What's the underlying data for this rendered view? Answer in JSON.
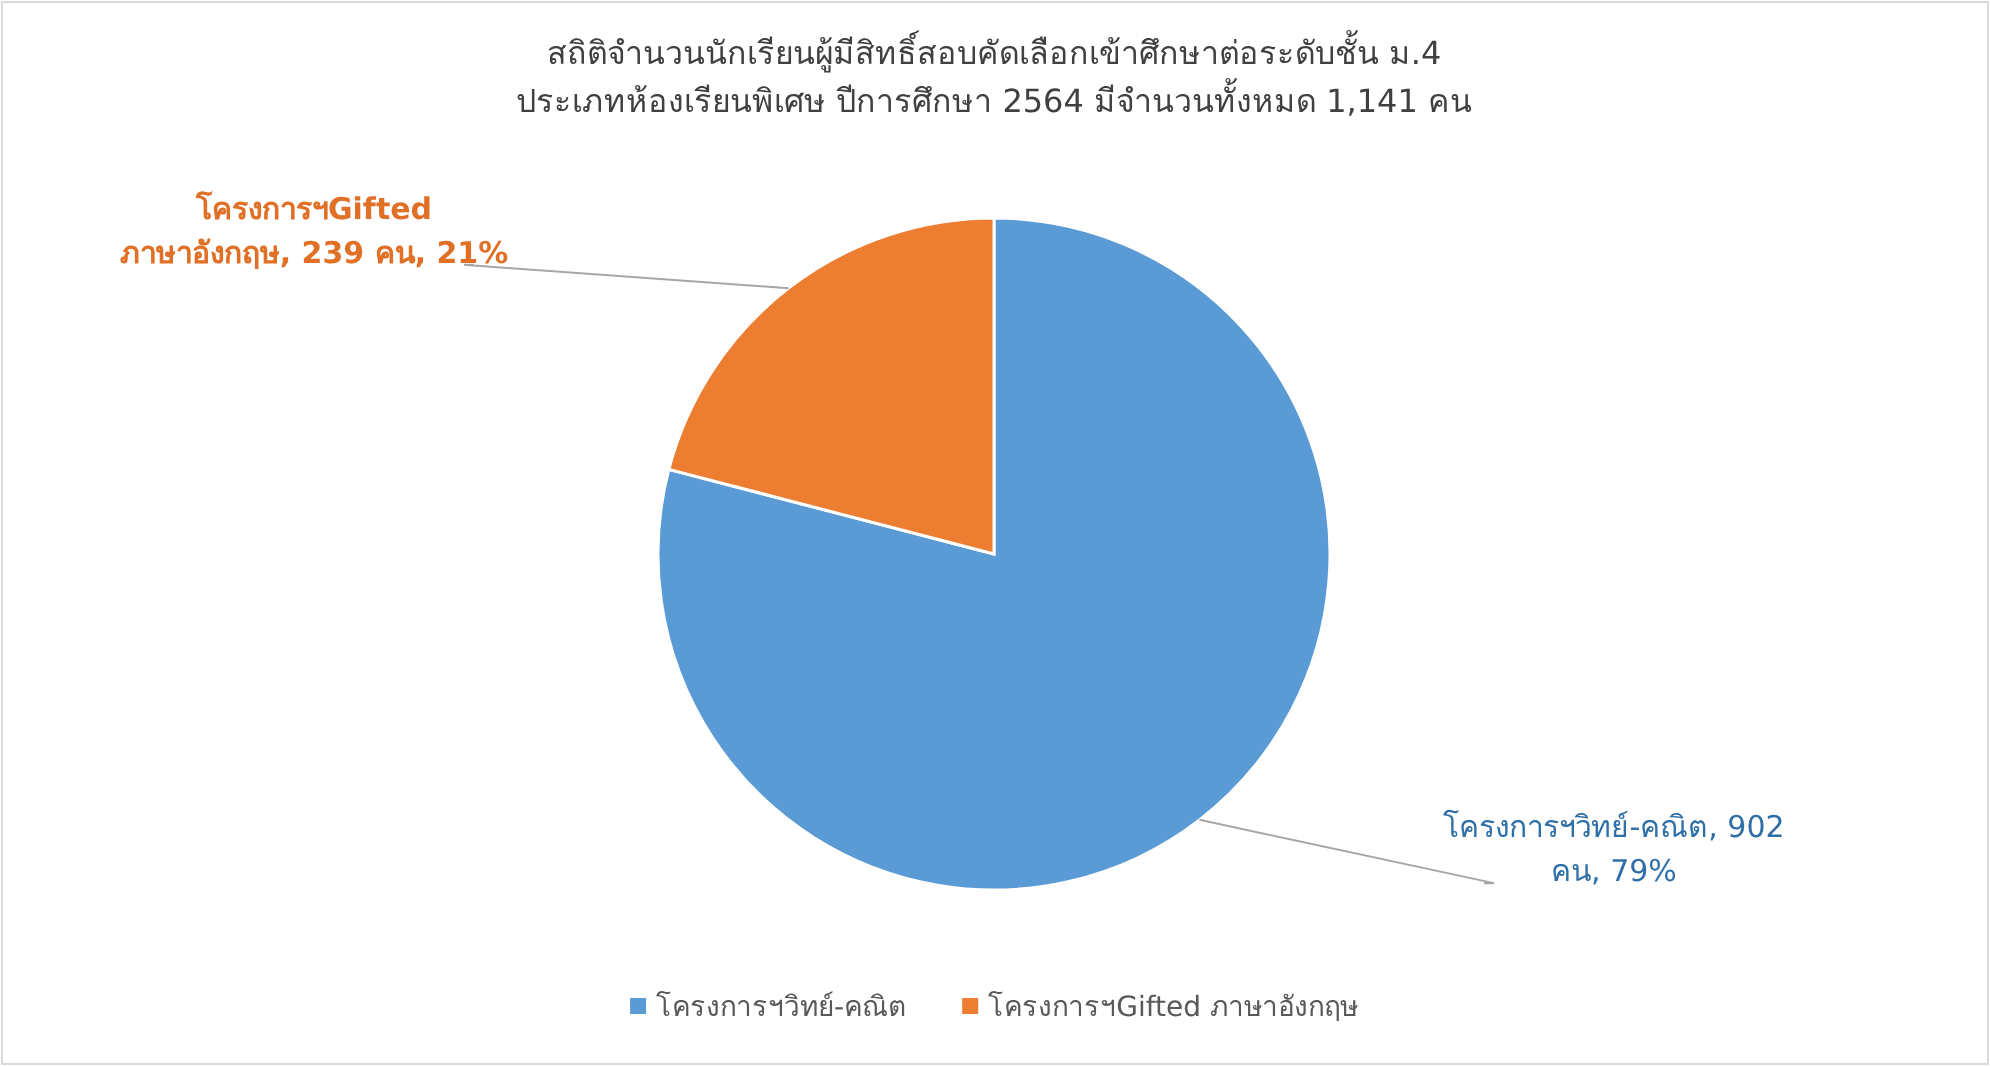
{
  "chart_data": {
    "type": "pie",
    "title": "สถิติจำนวนนักเรียนผู้มีสิทธิ์สอบคัดเลือกเข้าศึกษาต่อระดับชั้น ม.4 ประเภทห้องเรียนพิเศษ ปีการศึกษา 2564 มีจำนวนทั้งหมด 1,141 คน",
    "categories": [
      "โครงการฯวิทย์-คณิต",
      "โครงการฯGifted ภาษาอังกฤษ"
    ],
    "values": [
      902,
      239
    ],
    "colors": [
      "#5b9bd5",
      "#ed7d31"
    ],
    "value_labels": [
      "โครงการฯวิทย์-คณิต, 902 คน, 79%",
      "โครงการฯGifted ภาษาอังกฤษ, 239 คน, 21%"
    ],
    "legend": "bottom"
  }
}
